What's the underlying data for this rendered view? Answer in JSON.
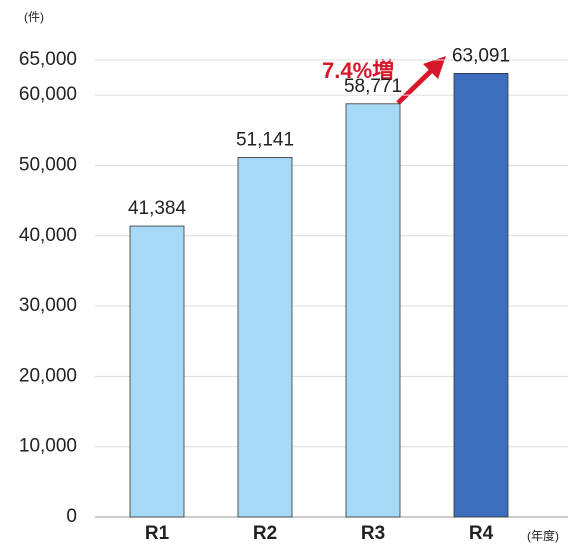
{
  "chart_data": {
    "type": "bar",
    "y_unit": "(件)",
    "x_unit": "(年度)",
    "annotation": "7.4%増",
    "categories": [
      "R1",
      "R2",
      "R3",
      "R4"
    ],
    "values": [
      41384,
      51141,
      58771,
      63091
    ],
    "value_labels": [
      "41,384",
      "51,141",
      "58,771",
      "63,091"
    ],
    "colors": [
      "#a6d9f5",
      "#a6d9f5",
      "#a6d9f5",
      "#3e6fbf"
    ],
    "ylim": [
      0,
      65000
    ],
    "yticks": [
      0,
      {
        "value": 10000,
        "label": "10,000"
      },
      {
        "value": 20000,
        "label": "20,000"
      },
      {
        "value": 30000,
        "label": "30,000"
      },
      {
        "value": 40000,
        "label": "40,000"
      },
      {
        "value": 50000,
        "label": "50,000"
      },
      {
        "value": 60000,
        "label": "60,000"
      },
      {
        "value": 65000,
        "label": "65,000"
      }
    ],
    "grid": true
  }
}
